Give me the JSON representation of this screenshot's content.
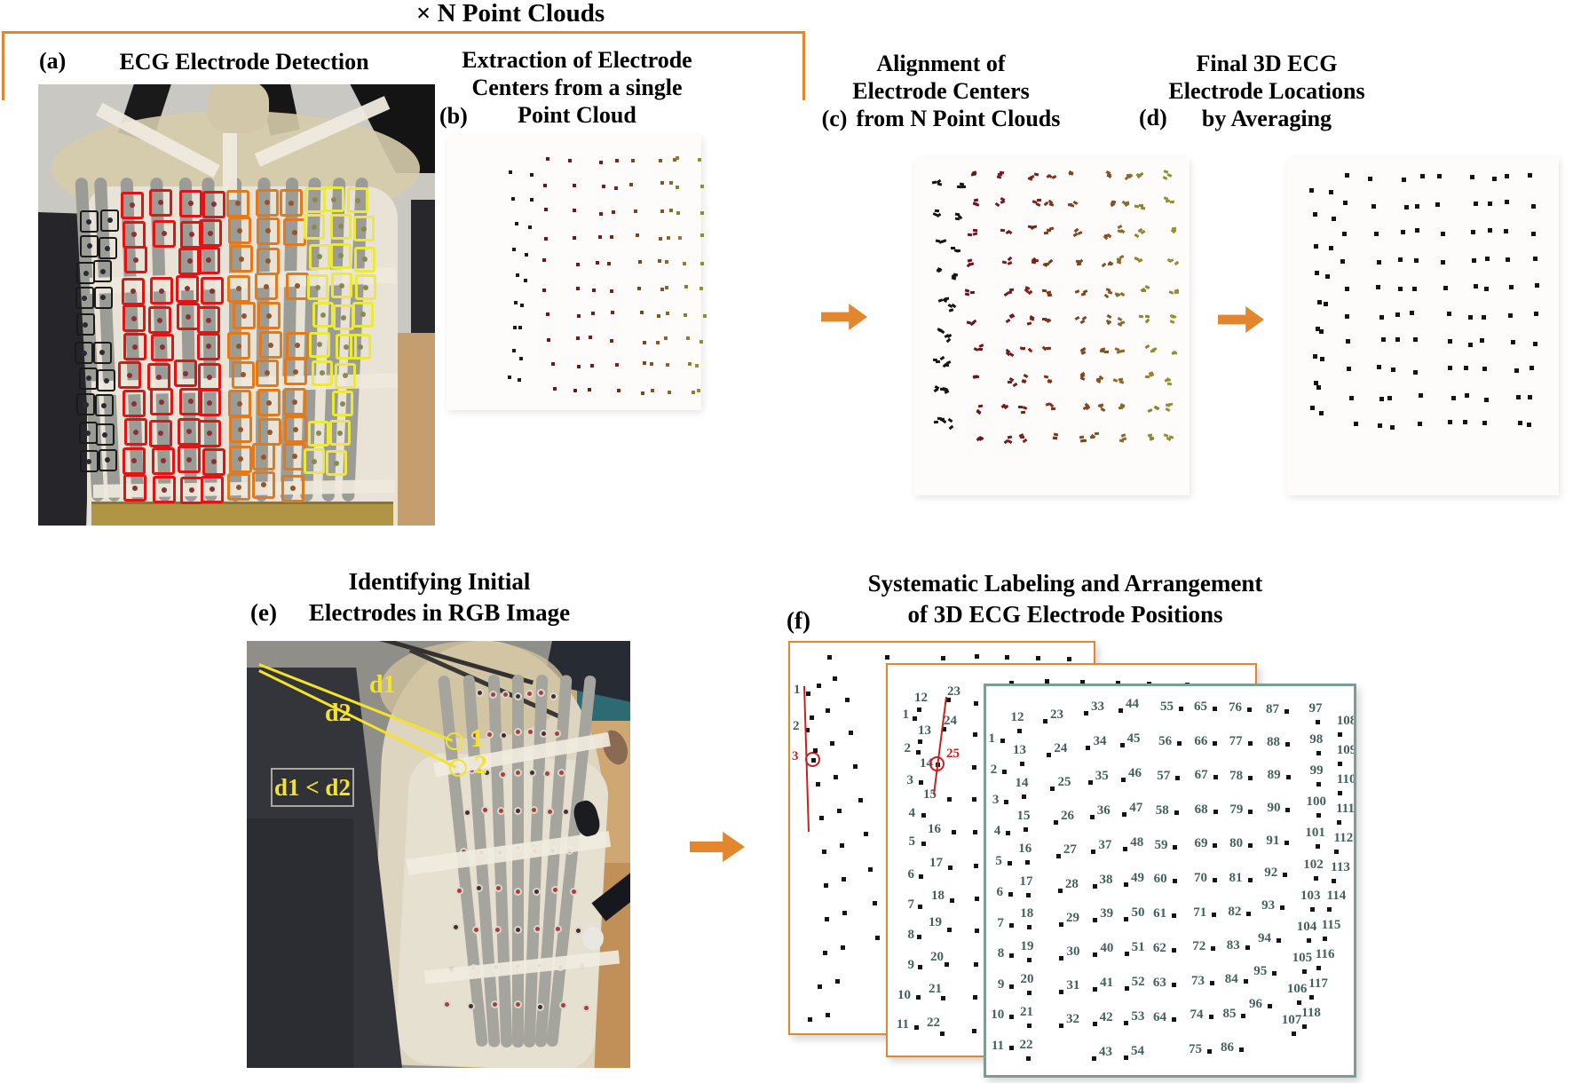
{
  "page": {
    "bracket_label": "× N Point Clouds"
  },
  "panel_a": {
    "tag": "(a)",
    "title": "ECG Electrode Detection"
  },
  "panel_b": {
    "tag": "(b)",
    "title_lines": [
      "Extraction of Electrode",
      "Centers from a single",
      "Point Cloud"
    ]
  },
  "panel_c": {
    "tag": "(c)",
    "title_lines": [
      "Alignment of",
      "Electrode Centers",
      "from N Point Clouds"
    ]
  },
  "panel_d": {
    "tag": "(d)",
    "title_lines": [
      "Final 3D ECG",
      "Electrode Locations",
      "by Averaging"
    ]
  },
  "panel_e": {
    "tag": "(e)",
    "title_lines": [
      "Identifying Initial",
      "Electrodes in RGB Image"
    ],
    "annotations": {
      "d1": "d1",
      "d2": "d2",
      "point1": "1",
      "point2": "2",
      "rule": "d1 < d2"
    }
  },
  "panel_f": {
    "tag": "(f)",
    "title_lines": [
      "Systematic Labeling and Arrangement",
      "of 3D ECG Electrode Positions"
    ],
    "back_panel": {
      "labels": [
        "1",
        "2",
        "3"
      ],
      "red_circled_label": "3"
    },
    "middle_panel": {
      "left_labels": [
        "1",
        "2",
        "3",
        "4",
        "5",
        "6",
        "7",
        "8",
        "9",
        "10",
        "11"
      ],
      "diag_labels": [
        "12",
        "13",
        "14",
        "15",
        "16",
        "17",
        "18",
        "19",
        "20",
        "21",
        "22"
      ],
      "top_labels": [
        "23",
        "24"
      ],
      "red_circled_label": "25"
    },
    "front_panel": {
      "columns": [
        {
          "numbers": [
            1,
            2,
            3,
            4,
            5,
            6,
            7,
            8,
            9,
            10,
            11
          ]
        },
        {
          "numbers": [
            12,
            13,
            14,
            15,
            16,
            17,
            18,
            19,
            20,
            21,
            22
          ]
        },
        {
          "numbers": [
            23,
            24,
            25,
            26,
            27,
            28,
            29,
            30,
            31,
            32
          ]
        },
        {
          "numbers": [
            33,
            34,
            35,
            36,
            37,
            38,
            39,
            40,
            41,
            42,
            43
          ]
        },
        {
          "numbers": [
            44,
            45,
            46,
            47,
            48,
            49,
            50,
            51,
            52,
            53,
            54
          ]
        },
        {
          "numbers": [
            55,
            56,
            57,
            58,
            59,
            60,
            61,
            62,
            63,
            64
          ]
        },
        {
          "numbers": [
            65,
            66,
            67,
            68,
            69,
            70,
            71,
            72,
            73,
            74,
            75
          ]
        },
        {
          "numbers": [
            76,
            77,
            78,
            79,
            80,
            81,
            82,
            83,
            84,
            85,
            86
          ]
        },
        {
          "numbers": [
            87,
            88,
            89,
            90,
            91,
            92,
            93,
            94,
            95,
            96
          ]
        },
        {
          "numbers": [
            97,
            98,
            99,
            100,
            101,
            102,
            103,
            104,
            105,
            106,
            107
          ]
        },
        {
          "numbers": [
            108,
            109,
            110,
            111,
            112,
            113,
            114,
            115,
            116,
            117,
            118
          ]
        }
      ]
    }
  },
  "colors": {
    "accent_orange": "#E2872E",
    "annotation_red": "#CC2020",
    "annotation_yellow": "#F2E42C",
    "number_label": "#44605C",
    "detection_black": "#1A1A1A",
    "detection_red": "#E01414",
    "detection_orange": "#E2791B",
    "detection_yellow": "#EDE93B",
    "front_box_border": "#7E9C96"
  }
}
